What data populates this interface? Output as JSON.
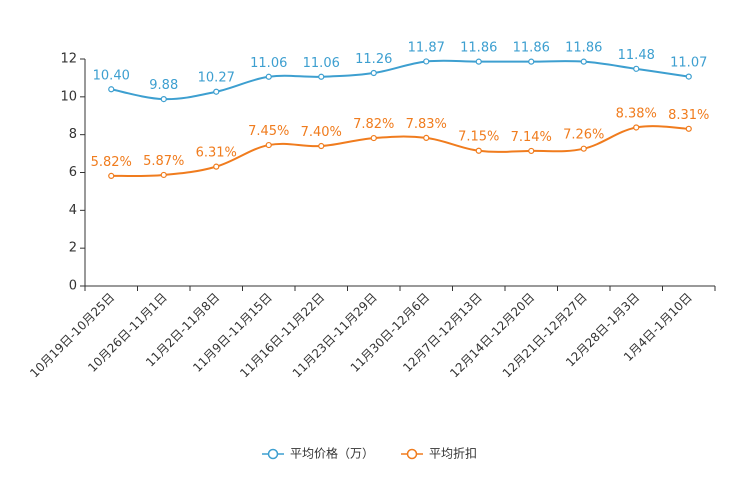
{
  "chart_data": {
    "type": "line",
    "title": "",
    "xlabel": "",
    "ylabel": "",
    "ylim": [
      0,
      12
    ],
    "yticks": [
      "0",
      "2",
      "4",
      "6",
      "8",
      "10",
      "12"
    ],
    "categories": [
      "10月19日-10月25日",
      "10月26日-11月1日",
      "11月2日-11月8日",
      "11月9日-11月15日",
      "11月16日-11月22日",
      "11月23日-11月29日",
      "11月30日-12月6日",
      "12月7日-12月13日",
      "12月14日-12月20日",
      "12月21日-12月27日",
      "12月28日-1月3日",
      "1月4日-1月10日"
    ],
    "series": [
      {
        "name": "平均价格（万）",
        "color": "#3d9fd0",
        "values": [
          10.4,
          9.88,
          10.27,
          11.06,
          11.06,
          11.26,
          11.87,
          11.86,
          11.86,
          11.86,
          11.48,
          11.07
        ],
        "labels": [
          "10.40",
          "9.88",
          "10.27",
          "11.06",
          "11.06",
          "11.26",
          "11.87",
          "11.86",
          "11.86",
          "11.86",
          "11.48",
          "11.07"
        ]
      },
      {
        "name": "平均折扣",
        "color": "#f07c1e",
        "values": [
          5.82,
          5.87,
          6.31,
          7.45,
          7.4,
          7.82,
          7.83,
          7.15,
          7.14,
          7.26,
          8.38,
          8.31
        ],
        "labels": [
          "5.82%",
          "5.87%",
          "6.31%",
          "7.45%",
          "7.40%",
          "7.82%",
          "7.83%",
          "7.15%",
          "7.14%",
          "7.26%",
          "8.38%",
          "8.31%"
        ]
      }
    ],
    "legend": "bottom-center"
  }
}
